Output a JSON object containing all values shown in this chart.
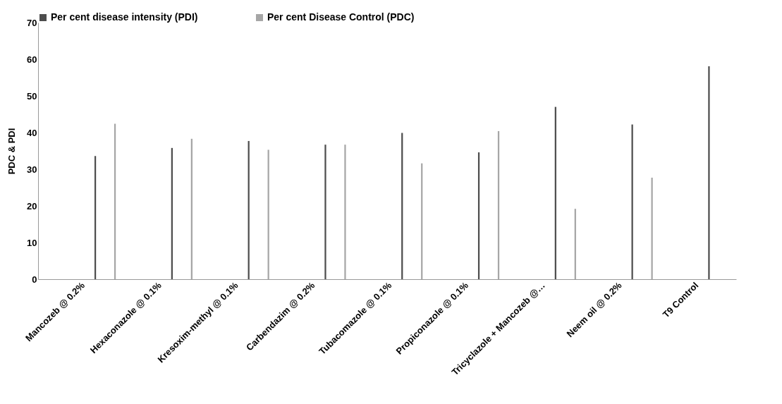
{
  "chart_data": {
    "type": "bar",
    "ylabel": "PDC & PDI",
    "categories": [
      "Mancozeb @ 0.2%",
      "Hexaconazole  @ 0.1%",
      "Kresoxim-methyl @ 0.1%",
      "Carbendazim @ 0.2%",
      "Tubacomazole @ 0.1%",
      "Propiconazole @ 0.1%",
      "Tricyclazole + Mancozeb @…",
      "Neem oil @ 0.2%",
      "T9 Control"
    ],
    "series": [
      {
        "name": "Per cent disease intensity (PDI)",
        "color": "#4d4d4d",
        "values": [
          33.6,
          35.8,
          37.7,
          36.7,
          39.9,
          34.6,
          47.0,
          42.2,
          58.1
        ]
      },
      {
        "name": "Per cent Disease Control (PDC)",
        "color": "#a6a6a6",
        "values": [
          42.4,
          38.3,
          35.3,
          36.7,
          31.6,
          40.4,
          19.2,
          27.7,
          null
        ]
      }
    ],
    "ylim": [
      0,
      70
    ],
    "yticks": [
      0,
      10,
      20,
      30,
      40,
      50,
      60,
      70
    ],
    "grid": false,
    "legend": "top"
  }
}
